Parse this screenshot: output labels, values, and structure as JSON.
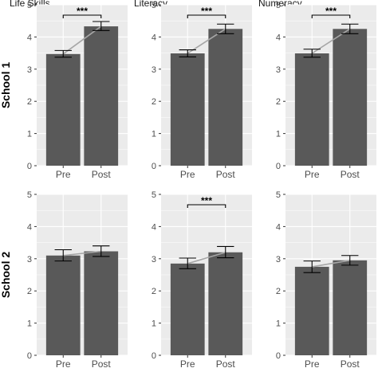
{
  "chart_data": {
    "type": "bar",
    "layout": "facet-grid",
    "columns": [
      "Life Skills",
      "Literacy",
      "Numeracy"
    ],
    "rows": [
      "School 1",
      "School 2"
    ],
    "categories": [
      "Pre",
      "Post"
    ],
    "ylim": [
      0,
      5
    ],
    "yticks": [
      "0",
      "1",
      "2",
      "3",
      "4",
      "5"
    ],
    "grid": true,
    "colors": {
      "panel_bg": "#ebebeb",
      "grid": "#ffffff",
      "bar": "#595959",
      "connector": "#a6a6a6",
      "errorbar": "#000000",
      "sig": "#000000"
    },
    "panels": [
      {
        "row": "School 1",
        "column": "Life Skills",
        "values": [
          3.47,
          4.33
        ],
        "errors": [
          [
            3.37,
            3.58
          ],
          [
            4.2,
            4.48
          ]
        ],
        "significance": "***"
      },
      {
        "row": "School 1",
        "column": "Literacy",
        "values": [
          3.49,
          4.25
        ],
        "errors": [
          [
            3.38,
            3.6
          ],
          [
            4.1,
            4.4
          ]
        ],
        "significance": "***"
      },
      {
        "row": "School 1",
        "column": "Numeracy",
        "values": [
          3.49,
          4.25
        ],
        "errors": [
          [
            3.37,
            3.62
          ],
          [
            4.1,
            4.4
          ]
        ],
        "significance": "***"
      },
      {
        "row": "School 2",
        "column": "Life Skills",
        "values": [
          3.1,
          3.23
        ],
        "errors": [
          [
            2.93,
            3.28
          ],
          [
            3.07,
            3.4
          ]
        ],
        "significance": ""
      },
      {
        "row": "School 2",
        "column": "Literacy",
        "values": [
          2.85,
          3.2
        ],
        "errors": [
          [
            2.69,
            3.02
          ],
          [
            3.03,
            3.38
          ]
        ],
        "significance": "***"
      },
      {
        "row": "School 2",
        "column": "Numeracy",
        "values": [
          2.75,
          2.95
        ],
        "errors": [
          [
            2.57,
            2.93
          ],
          [
            2.8,
            3.1
          ]
        ],
        "significance": ""
      }
    ]
  }
}
